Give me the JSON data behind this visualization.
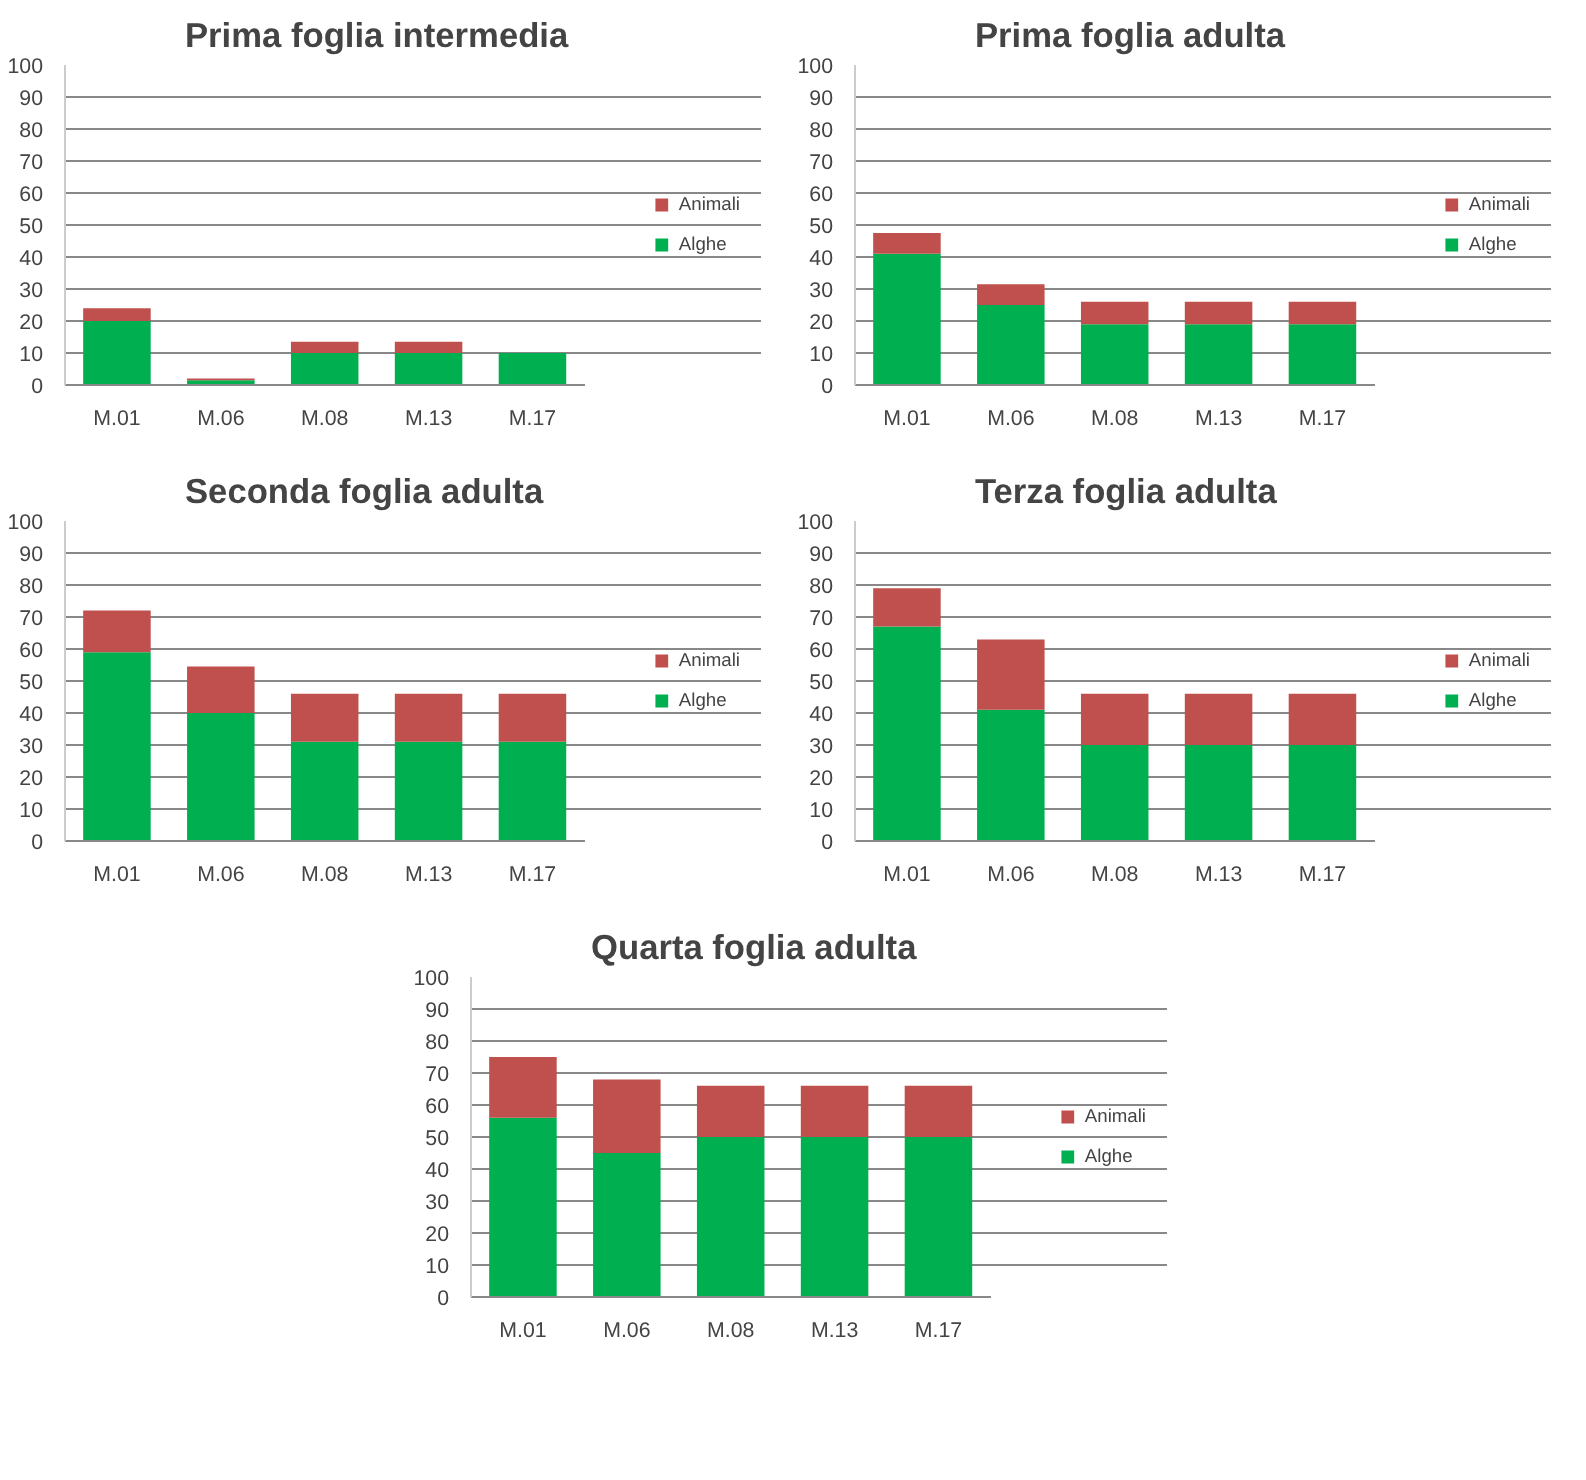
{
  "chart_data": [
    {
      "type": "bar",
      "title": "Prima foglia intermedia",
      "categories": [
        "M.01",
        "M.06",
        "M.08",
        "M.13",
        "M.17"
      ],
      "stacked": true,
      "ylim": [
        0,
        100
      ],
      "yticks": [
        0,
        10,
        20,
        30,
        40,
        50,
        60,
        70,
        80,
        90,
        100
      ],
      "grid": "y",
      "legend": "right",
      "series": [
        {
          "name": "Alghe",
          "color": "#00b050",
          "values": [
            20,
            1.5,
            10,
            10,
            10
          ]
        },
        {
          "name": "Animali",
          "color": "#c0504d",
          "values": [
            4,
            0.5,
            3.5,
            3.5,
            0
          ]
        }
      ]
    },
    {
      "type": "bar",
      "title": "Prima foglia adulta",
      "categories": [
        "M.01",
        "M.06",
        "M.08",
        "M.13",
        "M.17"
      ],
      "stacked": true,
      "ylim": [
        0,
        100
      ],
      "yticks": [
        0,
        10,
        20,
        30,
        40,
        50,
        60,
        70,
        80,
        90,
        100
      ],
      "grid": "y",
      "legend": "right",
      "series": [
        {
          "name": "Alghe",
          "color": "#00b050",
          "values": [
            41,
            25,
            19,
            19,
            19
          ]
        },
        {
          "name": "Animali",
          "color": "#c0504d",
          "values": [
            6.5,
            6.5,
            7,
            7,
            7
          ]
        }
      ]
    },
    {
      "type": "bar",
      "title": "Seconda foglia adulta",
      "categories": [
        "M.01",
        "M.06",
        "M.08",
        "M.13",
        "M.17"
      ],
      "stacked": true,
      "ylim": [
        0,
        100
      ],
      "yticks": [
        0,
        10,
        20,
        30,
        40,
        50,
        60,
        70,
        80,
        90,
        100
      ],
      "grid": "y",
      "legend": "right",
      "series": [
        {
          "name": "Alghe",
          "color": "#00b050",
          "values": [
            59,
            40,
            31,
            31,
            31
          ]
        },
        {
          "name": "Animali",
          "color": "#c0504d",
          "values": [
            13,
            14.5,
            15,
            15,
            15
          ]
        }
      ]
    },
    {
      "type": "bar",
      "title": "Terza foglia adulta",
      "categories": [
        "M.01",
        "M.06",
        "M.08",
        "M.13",
        "M.17"
      ],
      "stacked": true,
      "ylim": [
        0,
        100
      ],
      "yticks": [
        0,
        10,
        20,
        30,
        40,
        50,
        60,
        70,
        80,
        90,
        100
      ],
      "grid": "y",
      "legend": "right",
      "series": [
        {
          "name": "Alghe",
          "color": "#00b050",
          "values": [
            67,
            41,
            30,
            30,
            30
          ]
        },
        {
          "name": "Animali",
          "color": "#c0504d",
          "values": [
            12,
            22,
            16,
            16,
            16
          ]
        }
      ]
    },
    {
      "type": "bar",
      "title": "Quarta foglia adulta",
      "categories": [
        "M.01",
        "M.06",
        "M.08",
        "M.13",
        "M.17"
      ],
      "stacked": true,
      "ylim": [
        0,
        100
      ],
      "yticks": [
        0,
        10,
        20,
        30,
        40,
        50,
        60,
        70,
        80,
        90,
        100
      ],
      "grid": "y",
      "legend": "right",
      "series": [
        {
          "name": "Alghe",
          "color": "#00b050",
          "values": [
            56,
            45,
            50,
            50,
            50
          ]
        },
        {
          "name": "Animali",
          "color": "#c0504d",
          "values": [
            19,
            23,
            16,
            16,
            16
          ]
        }
      ]
    }
  ]
}
